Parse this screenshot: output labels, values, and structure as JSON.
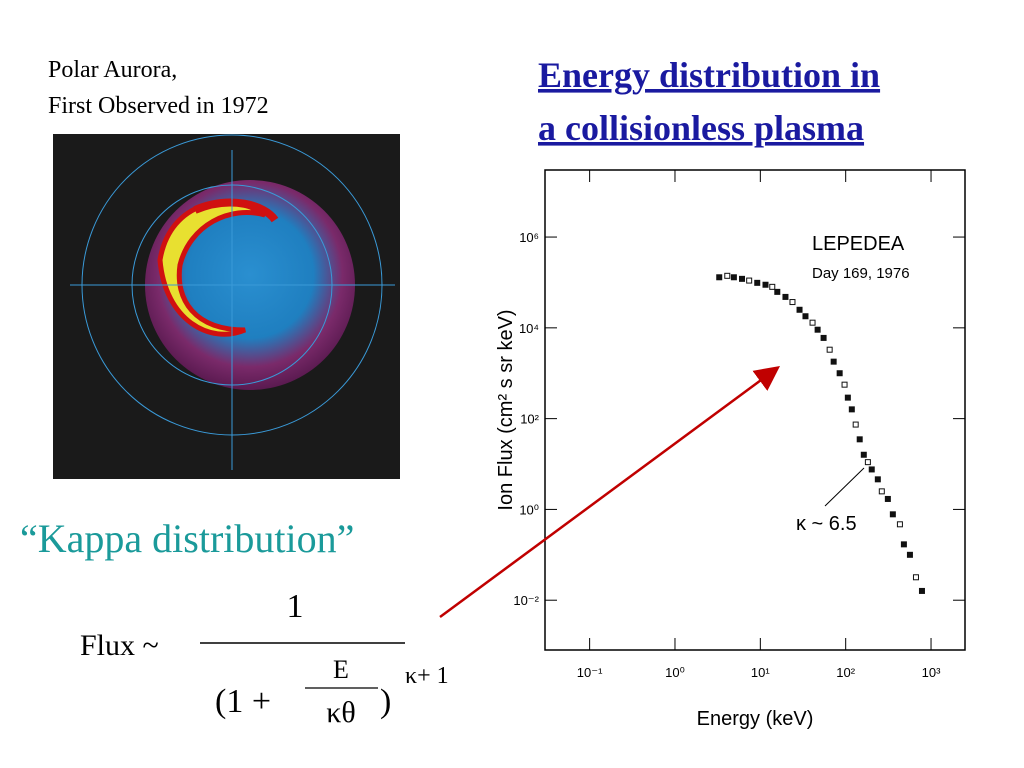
{
  "slide": {
    "caption_line1": "Polar Aurora,",
    "caption_line2": "First Observed in 1972",
    "heading_line1": "Energy distribution in",
    "heading_line2": "a collisionless plasma",
    "kappa_title": "“Kappa distribution”",
    "formula": {
      "lhs": "Flux ~",
      "numerator": "1",
      "open": "(1 +",
      "inner_numerator": "E",
      "inner_denominator": "κθ",
      "close": ")",
      "exponent": "κ+ 1"
    }
  },
  "chart_data": {
    "type": "scatter",
    "xlabel": "Energy (keV)",
    "ylabel": "Ion Flux (cm² s sr keV)",
    "annotations": [
      "LEPEDEA",
      "Day 169, 1976",
      "κ ~ 6.5"
    ],
    "xscale": "log",
    "yscale": "log",
    "xlim": [
      0.03,
      2500
    ],
    "ylim": [
      0.0008,
      30000000
    ],
    "xticks": [
      {
        "value": 0.1,
        "label": "10⁻¹"
      },
      {
        "value": 1,
        "label": "10⁰"
      },
      {
        "value": 10,
        "label": "10¹"
      },
      {
        "value": 100,
        "label": "10²"
      },
      {
        "value": 1000,
        "label": "10³"
      }
    ],
    "yticks": [
      {
        "value": 0.01,
        "label": "10⁻²"
      },
      {
        "value": 1,
        "label": "10⁰"
      },
      {
        "value": 100,
        "label": "10²"
      },
      {
        "value": 10000,
        "label": "10⁴"
      },
      {
        "value": 1000000,
        "label": "10⁶"
      }
    ],
    "color": "#111111",
    "x": [
      3.3,
      4.1,
      4.9,
      6.1,
      7.4,
      9.2,
      11.5,
      13.8,
      15.8,
      19.7,
      23.8,
      28.8,
      33.8,
      40.9,
      46.9,
      55.1,
      64.9,
      72.3,
      85,
      97,
      106,
      118,
      131,
      146,
      163,
      182,
      202,
      238,
      265,
      312,
      357,
      432,
      481,
      566,
      666,
      783
    ],
    "values": [
      130000,
      140000,
      130000,
      120000,
      110000,
      98000,
      89000,
      80000,
      62000,
      48000,
      37000,
      25000,
      18000,
      13000,
      9100,
      6000,
      3300,
      1800,
      1000,
      560,
      290,
      160,
      74,
      35,
      16,
      11,
      7.6,
      4.6,
      2.5,
      1.7,
      0.78,
      0.47,
      0.17,
      0.1,
      0.032,
      0.016
    ]
  }
}
